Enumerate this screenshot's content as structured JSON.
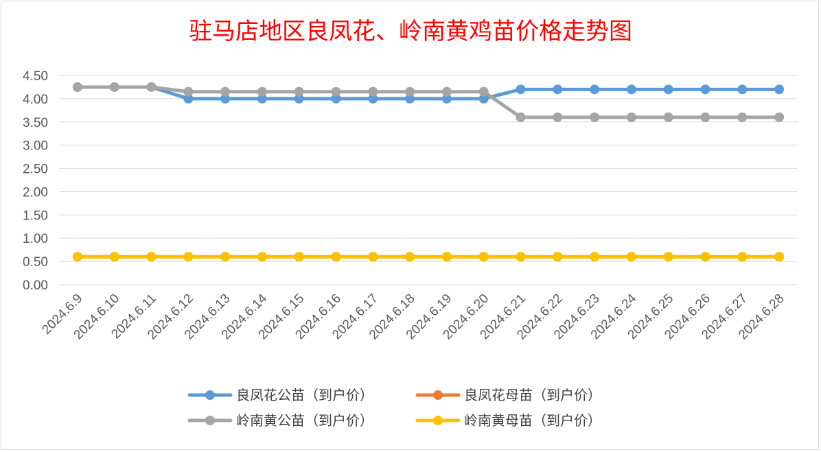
{
  "chart_data": {
    "type": "line",
    "title": "驻马店地区良凤花、岭南黄鸡苗价格走势图",
    "xlabel": "",
    "ylabel": "",
    "ylim": [
      0,
      4.5
    ],
    "yticks": [
      "0.00",
      "0.50",
      "1.00",
      "1.50",
      "2.00",
      "2.50",
      "3.00",
      "3.50",
      "4.00",
      "4.50"
    ],
    "grid": true,
    "legend": "bottom",
    "categories": [
      "2024.6.9",
      "2024.6.10",
      "2024.6.11",
      "2024.6.12",
      "2024.6.13",
      "2024.6.14",
      "2024.6.15",
      "2024.6.16",
      "2024.6.17",
      "2024.6.18",
      "2024.6.19",
      "2024.6.20",
      "2024.6.21",
      "2024.6.22",
      "2024.6.23",
      "2024.6.24",
      "2024.6.25",
      "2024.6.26",
      "2024.6.27",
      "2024.6.28"
    ],
    "series": [
      {
        "name": "良凤花公苗（到户价）",
        "color": "#5b9bd5",
        "values": [
          4.25,
          4.25,
          4.25,
          4.0,
          4.0,
          4.0,
          4.0,
          4.0,
          4.0,
          4.0,
          4.0,
          4.0,
          4.2,
          4.2,
          4.2,
          4.2,
          4.2,
          4.2,
          4.2,
          4.2
        ]
      },
      {
        "name": "良凤花母苗（到户价）",
        "color": "#ed7d31",
        "values": [
          0.6,
          0.6,
          0.6,
          0.6,
          0.6,
          0.6,
          0.6,
          0.6,
          0.6,
          0.6,
          0.6,
          0.6,
          0.6,
          0.6,
          0.6,
          0.6,
          0.6,
          0.6,
          0.6,
          0.6
        ]
      },
      {
        "name": "岭南黄公苗（到户价）",
        "color": "#a5a5a5",
        "values": [
          4.25,
          4.25,
          4.25,
          4.15,
          4.15,
          4.15,
          4.15,
          4.15,
          4.15,
          4.15,
          4.15,
          4.15,
          3.6,
          3.6,
          3.6,
          3.6,
          3.6,
          3.6,
          3.6,
          3.6
        ]
      },
      {
        "name": "岭南黄母苗（到户价）",
        "color": "#ffc000",
        "values": [
          0.6,
          0.6,
          0.6,
          0.6,
          0.6,
          0.6,
          0.6,
          0.6,
          0.6,
          0.6,
          0.6,
          0.6,
          0.6,
          0.6,
          0.6,
          0.6,
          0.6,
          0.6,
          0.6,
          0.6
        ]
      }
    ]
  }
}
